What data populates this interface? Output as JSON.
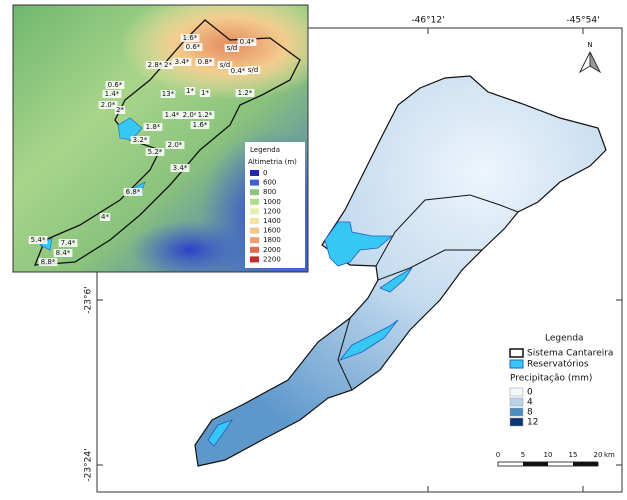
{
  "map": {
    "coordinates": {
      "top": [
        "-46°12'",
        "-45°54'"
      ],
      "left": [
        "-23°6'",
        "-23°24'"
      ]
    },
    "north": "N",
    "inset": {
      "legend_title": "Legenda",
      "legend_subtitle": "Altimetria (m)",
      "classes": [
        {
          "label": "0",
          "color": "#2323c4"
        },
        {
          "label": "600",
          "color": "#3a62d0"
        },
        {
          "label": "800",
          "color": "#8cc47c"
        },
        {
          "label": "1000",
          "color": "#b4da8e"
        },
        {
          "label": "1200",
          "color": "#e6f0ae"
        },
        {
          "label": "1400",
          "color": "#f4e2a2"
        },
        {
          "label": "1600",
          "color": "#f3c78c"
        },
        {
          "label": "1800",
          "color": "#ee9e70"
        },
        {
          "label": "2000",
          "color": "#df6d4e"
        },
        {
          "label": "2200",
          "color": "#c92a2a"
        }
      ],
      "station_labels": [
        "1.6*",
        "0.6*",
        "0.4*",
        "s/d",
        "2.8*",
        "2*",
        "3.4*",
        "0.8*",
        "s/d",
        "0.4*",
        "s/d",
        "0.6*",
        "1.4*",
        "13*",
        "1*",
        "1*",
        "1.2*",
        "2.0*",
        "2*",
        "1.4*",
        "2.0*",
        "1.2*",
        "1.8*",
        "1.6*",
        "3.2*",
        "5.2*",
        "2.0*",
        "3.4*",
        "6.8*",
        "4*",
        "5.4*",
        "7.4*",
        "8.4*",
        "8.8*"
      ]
    },
    "legend": {
      "title": "Legenda",
      "boundary": "Sistema Cantareira",
      "reservoirs": "Reservatórios",
      "precip_title": "Precipitação (mm)",
      "classes": [
        {
          "label": "0",
          "color": "#f3f8fd"
        },
        {
          "label": "4",
          "color": "#b8d3ea"
        },
        {
          "label": "8",
          "color": "#4b8cc4"
        },
        {
          "label": "12",
          "color": "#0c3572"
        }
      ],
      "reservoir_color": "#36c8f2"
    },
    "scale_bar": {
      "ticks": [
        "0",
        "5",
        "10",
        "15",
        "20"
      ],
      "unit": "km"
    }
  }
}
